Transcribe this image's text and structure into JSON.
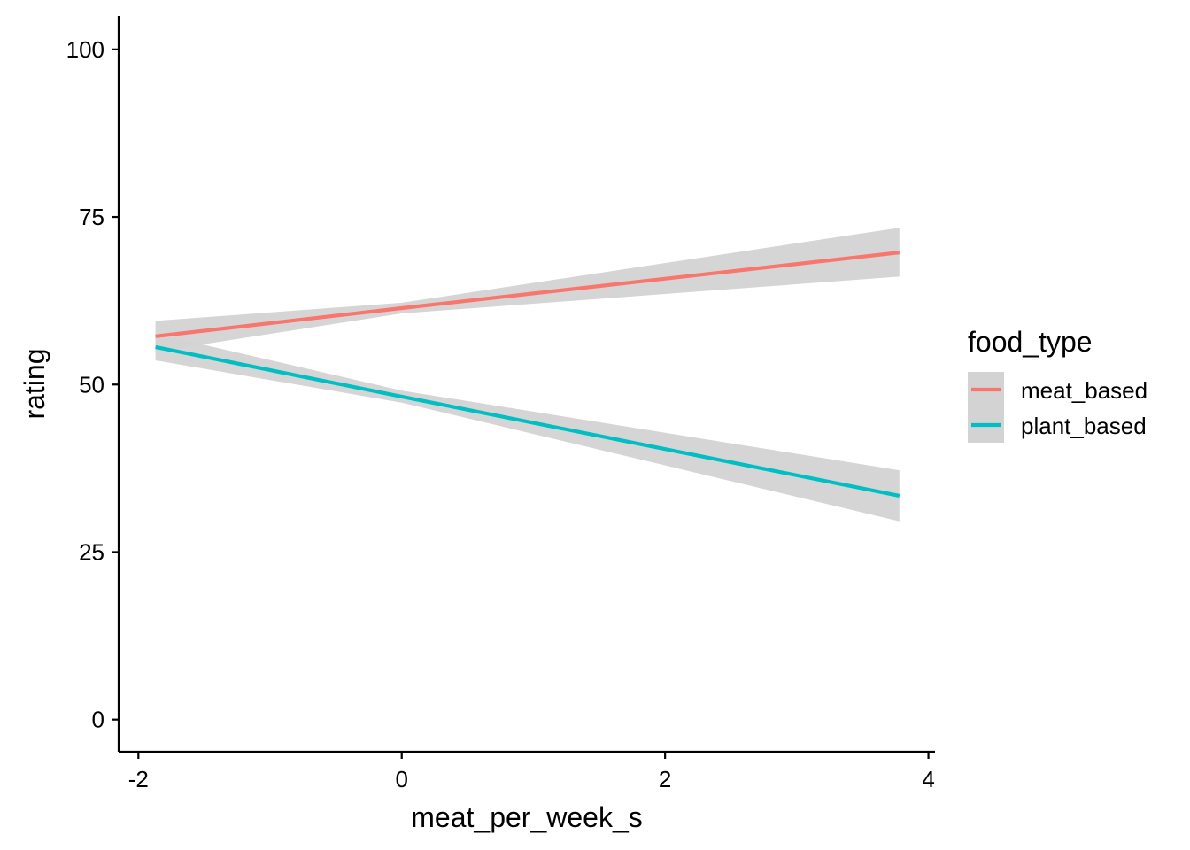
{
  "chart_data": {
    "type": "line",
    "title": "",
    "xlabel": "meat_per_week_s",
    "ylabel": "rating",
    "xlim": [
      -2.15,
      4.05
    ],
    "ylim": [
      -4.8,
      105
    ],
    "x_ticks": [
      -2,
      0,
      2,
      4
    ],
    "x_tick_labels": [
      "-2",
      "0",
      "2",
      "4"
    ],
    "y_ticks": [
      0,
      25,
      50,
      75,
      100
    ],
    "y_tick_labels": [
      "0",
      "25",
      "50",
      "75",
      "100"
    ],
    "grid": false,
    "legend": {
      "title": "food_type",
      "position": "right"
    },
    "series": [
      {
        "name": "meat_based",
        "color": "#F8766D",
        "x": [
          -1.87,
          0,
          3.78
        ],
        "y": [
          57.2,
          61.4,
          69.7
        ],
        "ci_lower": [
          54.9,
          60.6,
          66.1
        ],
        "ci_upper": [
          59.5,
          62.2,
          73.4
        ]
      },
      {
        "name": "plant_based",
        "color": "#00BFC4",
        "x": [
          -1.87,
          0,
          3.78
        ],
        "y": [
          55.6,
          48.2,
          33.4
        ],
        "ci_lower": [
          53.6,
          47.3,
          29.6
        ],
        "ci_upper": [
          57.6,
          49.1,
          37.2
        ]
      }
    ],
    "ribbon_color": "#D3D3D3"
  }
}
